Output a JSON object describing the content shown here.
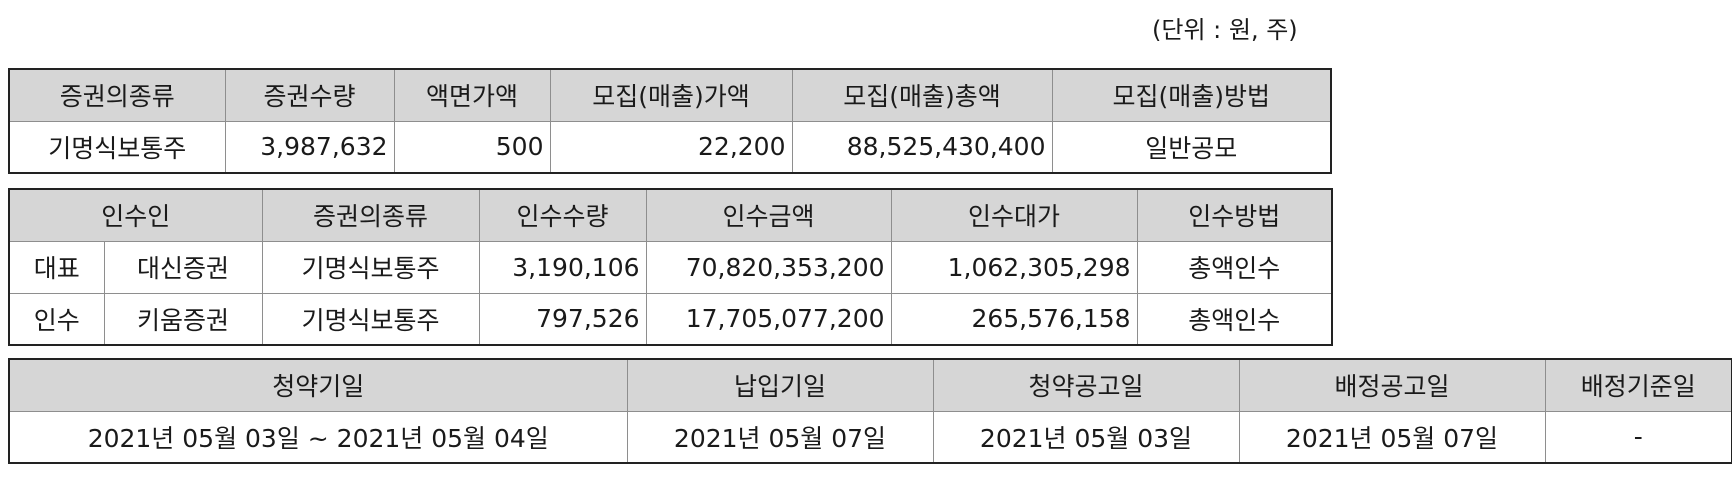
{
  "unit_note": "(단위 : 원, 주)",
  "offering": {
    "headers": [
      "증권의종류",
      "증권수량",
      "액면가액",
      "모집(매출)가액",
      "모집(매출)총액",
      "모집(매출)방법"
    ],
    "row": {
      "security_type": "기명식보통주",
      "quantity": "3,987,632",
      "par_value": "500",
      "offer_price": "22,200",
      "offer_total": "88,525,430,400",
      "method": "일반공모"
    }
  },
  "underwriters": {
    "headers": [
      "인수인",
      "증권의종류",
      "인수수량",
      "인수금액",
      "인수대가",
      "인수방법"
    ],
    "rows": [
      {
        "role": "대표",
        "name": "대신증권",
        "security_type": "기명식보통주",
        "quantity": "3,190,106",
        "amount": "70,820,353,200",
        "fee": "1,062,305,298",
        "method": "총액인수"
      },
      {
        "role": "인수",
        "name": "키움증권",
        "security_type": "기명식보통주",
        "quantity": "797,526",
        "amount": "17,705,077,200",
        "fee": "265,576,158",
        "method": "총액인수"
      }
    ]
  },
  "schedule": {
    "headers": [
      "청약기일",
      "납입기일",
      "청약공고일",
      "배정공고일",
      "배정기준일"
    ],
    "row": {
      "subscription_period": "2021년 05월 03일 ~ 2021년 05월 04일",
      "payment_date": "2021년 05월 07일",
      "subscription_notice_date": "2021년 05월 03일",
      "allotment_notice_date": "2021년 05월 07일",
      "allotment_record_date": "-"
    }
  }
}
